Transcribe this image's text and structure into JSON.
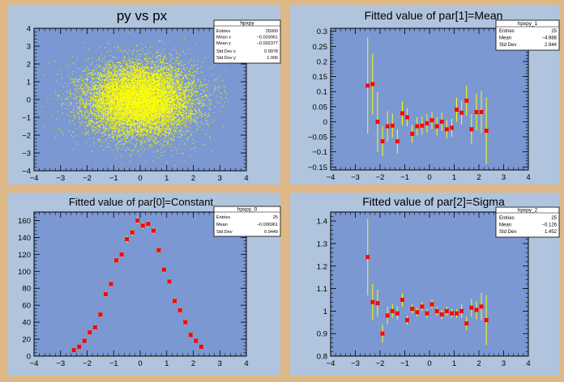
{
  "chart_data": [
    {
      "id": "pad1",
      "type": "scatter",
      "title": "py vs px",
      "xlim": [
        -4,
        4
      ],
      "ylim": [
        -4,
        4
      ],
      "xticks": [
        "−4",
        "−3",
        "−2",
        "−1",
        "0",
        "1",
        "2",
        "3",
        "4"
      ],
      "yticks": [
        "−4",
        "−3",
        "−2",
        "−1",
        "0",
        "1",
        "2",
        "3",
        "4"
      ],
      "xtick_values": [
        -4,
        -3,
        -2,
        -1,
        0,
        1,
        2,
        3,
        4
      ],
      "ytick_values": [
        -4,
        -3,
        -2,
        -1,
        0,
        1,
        2,
        3,
        4
      ],
      "marker_color": "#ffff00",
      "distribution": {
        "entries": 25000,
        "mean_x": -0.003961,
        "mean_y": -0.002377,
        "std_x": 0.9978,
        "std_y": 1.006
      },
      "stats": {
        "title": "hpxpy",
        "rows": [
          {
            "label": "Entries",
            "value": "25000"
          },
          {
            "label": "Mean x",
            "value": "−0.003961"
          },
          {
            "label": "Mean y",
            "value": "−0.002377"
          },
          {
            "label": "Std Dev x",
            "value": "0.9978"
          },
          {
            "label": "Std Dev y",
            "value": "1.006"
          }
        ]
      }
    },
    {
      "id": "pad2",
      "type": "scatter",
      "title": "Fitted value of par[1]=Mean",
      "xlim": [
        -4,
        4
      ],
      "ylim": [
        -0.16,
        0.31
      ],
      "xticks": [
        "−4",
        "−3",
        "−2",
        "−1",
        "0",
        "1",
        "2",
        "3",
        "4"
      ],
      "yticks": [
        "−0.15",
        "−0.1",
        "−0.05",
        "0",
        "0.05",
        "0.1",
        "0.15",
        "0.2",
        "0.25",
        "0.3"
      ],
      "xtick_values": [
        -4,
        -3,
        -2,
        -1,
        0,
        1,
        2,
        3,
        4
      ],
      "ytick_values": [
        -0.15,
        -0.1,
        -0.05,
        0,
        0.05,
        0.1,
        0.15,
        0.2,
        0.25,
        0.3
      ],
      "x": [
        -2.5,
        -2.3,
        -2.1,
        -1.9,
        -1.7,
        -1.5,
        -1.3,
        -1.1,
        -0.9,
        -0.7,
        -0.5,
        -0.3,
        -0.1,
        0.1,
        0.3,
        0.5,
        0.7,
        0.9,
        1.1,
        1.3,
        1.5,
        1.7,
        1.9,
        2.1,
        2.3
      ],
      "y": [
        0.12,
        0.125,
        0.0,
        -0.065,
        -0.015,
        -0.013,
        -0.065,
        0.028,
        0.015,
        -0.04,
        -0.015,
        -0.013,
        -0.005,
        0.005,
        -0.015,
        0.0,
        -0.025,
        -0.02,
        0.04,
        0.03,
        0.07,
        -0.025,
        0.032,
        0.032,
        -0.03
      ],
      "yerr": [
        0.16,
        0.1,
        0.1,
        0.05,
        0.05,
        0.04,
        0.04,
        0.04,
        0.03,
        0.03,
        0.03,
        0.03,
        0.03,
        0.03,
        0.03,
        0.03,
        0.03,
        0.03,
        0.04,
        0.04,
        0.05,
        0.05,
        0.06,
        0.07,
        0.11
      ],
      "marker_color": "#ff0000",
      "errorbar_color": "#ffff00",
      "stats": {
        "title": "hpxpy_1",
        "rows": [
          {
            "label": "Entries",
            "value": "25"
          },
          {
            "label": "Mean",
            "value": "−4.988"
          },
          {
            "label": "Std Dev",
            "value": "2.944"
          }
        ]
      }
    },
    {
      "id": "pad3",
      "type": "scatter",
      "title": "Fitted value of par[0]=Constant",
      "xlim": [
        -4,
        4
      ],
      "ylim": [
        0,
        170
      ],
      "xticks": [
        "−4",
        "−3",
        "−2",
        "−1",
        "0",
        "1",
        "2",
        "3",
        "4"
      ],
      "yticks": [
        "0",
        "20",
        "40",
        "60",
        "80",
        "100",
        "120",
        "140",
        "160"
      ],
      "xtick_values": [
        -4,
        -3,
        -2,
        -1,
        0,
        1,
        2,
        3,
        4
      ],
      "ytick_values": [
        0,
        20,
        40,
        60,
        80,
        100,
        120,
        140,
        160
      ],
      "x": [
        -2.5,
        -2.3,
        -2.1,
        -1.9,
        -1.7,
        -1.5,
        -1.3,
        -1.1,
        -0.9,
        -0.7,
        -0.5,
        -0.3,
        -0.1,
        0.1,
        0.3,
        0.5,
        0.7,
        0.9,
        1.1,
        1.3,
        1.5,
        1.7,
        1.9,
        2.1,
        2.3
      ],
      "y": [
        7,
        11,
        18,
        28,
        34,
        49,
        73,
        85,
        113,
        120,
        138,
        146,
        160,
        154,
        156,
        148,
        125,
        102,
        88,
        65,
        54,
        40,
        25,
        18,
        11
      ],
      "yerr": [
        2,
        2,
        2,
        3,
        3,
        3,
        3,
        3,
        3,
        3,
        4,
        4,
        4,
        4,
        4,
        4,
        3,
        3,
        3,
        3,
        3,
        3,
        2,
        2,
        2
      ],
      "marker_color": "#ff0000",
      "errorbar_color": "#ffff00",
      "stats": {
        "title": "hpxpy_0",
        "rows": [
          {
            "label": "Entries",
            "value": "25"
          },
          {
            "label": "Mean",
            "value": "−0.006961"
          },
          {
            "label": "Std Dev",
            "value": "0.9449"
          }
        ]
      }
    },
    {
      "id": "pad4",
      "type": "scatter",
      "title": "Fitted value of par[2]=Sigma",
      "xlim": [
        -4,
        4
      ],
      "ylim": [
        0.8,
        1.44
      ],
      "xticks": [
        "−4",
        "−3",
        "−2",
        "−1",
        "0",
        "1",
        "2",
        "3",
        "4"
      ],
      "yticks": [
        "0.8",
        "0.9",
        "1",
        "1.1",
        "1.2",
        "1.3",
        "1.4"
      ],
      "xtick_values": [
        -4,
        -3,
        -2,
        -1,
        0,
        1,
        2,
        3,
        4
      ],
      "ytick_values": [
        0.8,
        0.9,
        1.0,
        1.1,
        1.2,
        1.3,
        1.4
      ],
      "x": [
        -2.5,
        -2.3,
        -2.1,
        -1.9,
        -1.7,
        -1.5,
        -1.3,
        -1.1,
        -0.9,
        -0.7,
        -0.5,
        -0.3,
        -0.1,
        0.1,
        0.3,
        0.5,
        0.7,
        0.9,
        1.1,
        1.3,
        1.5,
        1.7,
        1.9,
        2.1,
        2.3
      ],
      "y": [
        1.24,
        1.04,
        1.035,
        0.9,
        0.98,
        1.0,
        0.99,
        1.05,
        0.96,
        1.01,
        0.995,
        1.02,
        0.99,
        1.03,
        1.0,
        0.985,
        1.0,
        0.99,
        0.99,
        1.0,
        0.945,
        1.015,
        1.005,
        1.02,
        0.96
      ],
      "yerr": [
        0.17,
        0.08,
        0.06,
        0.04,
        0.04,
        0.03,
        0.03,
        0.03,
        0.02,
        0.02,
        0.02,
        0.02,
        0.02,
        0.02,
        0.02,
        0.02,
        0.02,
        0.02,
        0.02,
        0.03,
        0.03,
        0.04,
        0.04,
        0.06,
        0.11
      ],
      "marker_color": "#ff0000",
      "errorbar_color": "#ffff00",
      "stats": {
        "title": "hpxpy_2",
        "rows": [
          {
            "label": "Entries",
            "value": "25"
          },
          {
            "label": "Mean",
            "value": "−0.126"
          },
          {
            "label": "Std Dev",
            "value": "1.452"
          }
        ]
      }
    }
  ],
  "colors": {
    "canvas_bg": "#deb887",
    "pad_bg": "#b0c4de",
    "frame_bg": "#7b98d2"
  }
}
